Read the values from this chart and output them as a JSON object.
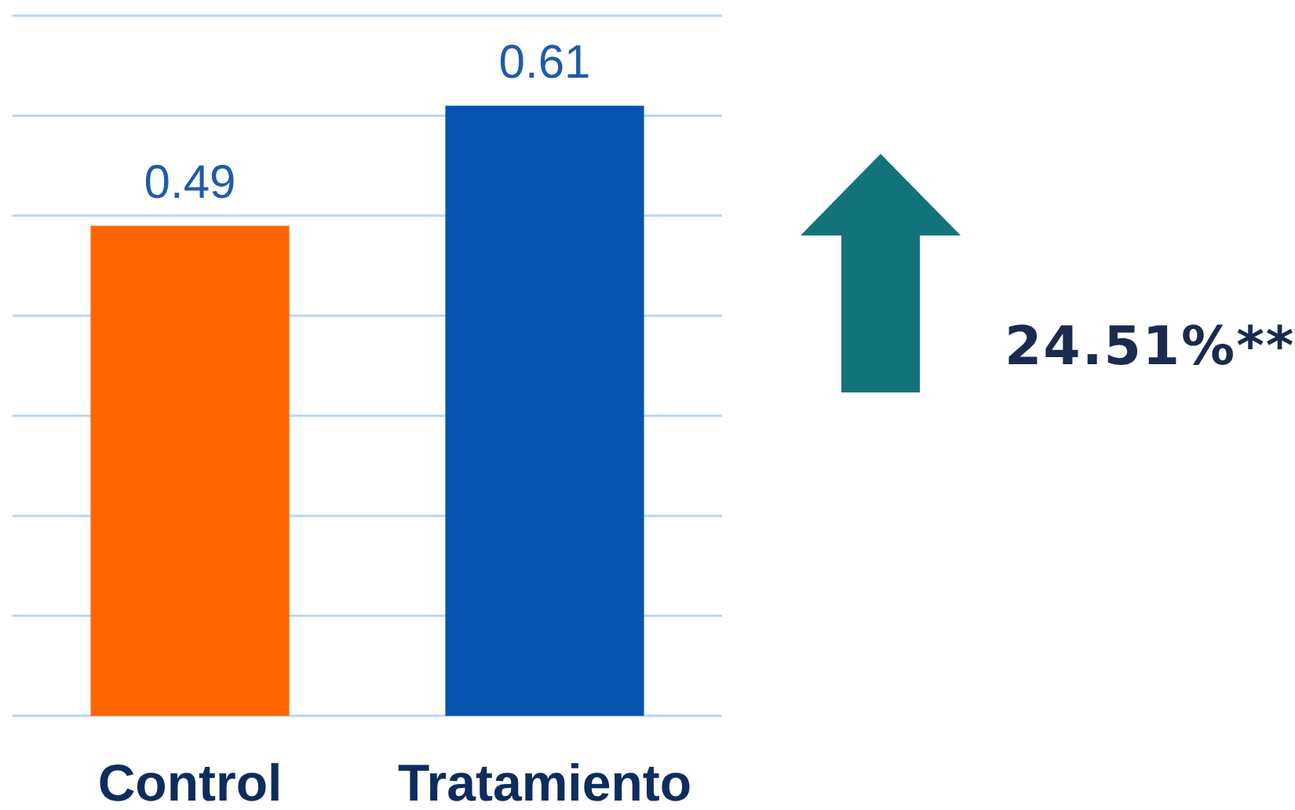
{
  "chart_data": {
    "type": "bar",
    "categories": [
      "Control",
      "Tratamiento"
    ],
    "values": [
      0.49,
      0.61
    ],
    "colors": [
      "#ff6600",
      "#0654b0"
    ],
    "ylim": [
      0,
      0.7
    ],
    "yticks": [
      {
        "value": 0,
        "label": null
      },
      {
        "value": 0.1,
        "label": null
      },
      {
        "value": 0.2,
        "label": null
      },
      {
        "value": 0.3,
        "label": null
      },
      {
        "value": 0.4,
        "label": null
      },
      {
        "value": 0.5,
        "label": null
      },
      {
        "value": 0.6,
        "label": null
      },
      {
        "value": 0.7,
        "label": null
      }
    ],
    "grid": "y",
    "tick_labels": "x",
    "data_labels": true,
    "annotations": [
      "24.51%**"
    ]
  }
}
